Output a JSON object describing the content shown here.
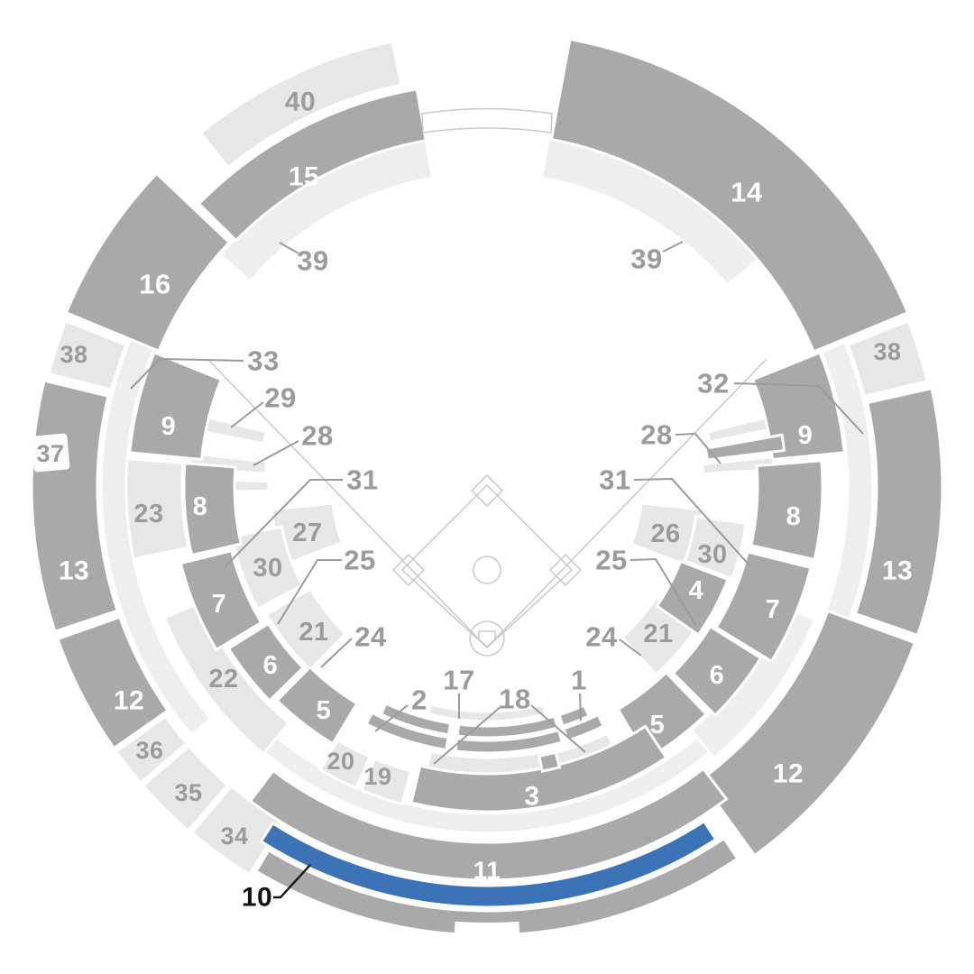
{
  "map": {
    "type": "stadium-seating-bowl",
    "highlighted_section": "10"
  },
  "colors": {
    "background": "#ffffff",
    "section_dark": "#a9a9a9",
    "section_light": "#e7e7e7",
    "walkway": "#eeeeee",
    "highlight_blue": "#3b73b6",
    "label_on_dark": "#ffffff",
    "label_gray": "#9b9b9b",
    "label_black": "#141414",
    "leader_line": "#9b9b9b",
    "field_line": "#c9c9c9",
    "tile_white": "#fbfbfb"
  },
  "labels": {
    "s3": "3",
    "s4": "4",
    "s5L": "5",
    "s5R": "5",
    "s6L": "6",
    "s6R": "6",
    "s7L": "7",
    "s7R": "7",
    "s8L": "8",
    "s8R": "8",
    "s9L": "9",
    "s9R": "9",
    "s11": "11",
    "s12L": "12",
    "s12R": "12",
    "s13L": "13",
    "s13R": "13",
    "s14": "14",
    "s15": "15",
    "s16": "16",
    "s19": "19",
    "s20": "20",
    "s21L": "21",
    "s21R": "21",
    "s22": "22",
    "s23": "23",
    "s26": "26",
    "s27": "27",
    "s30L": "30",
    "s30R": "30",
    "s34": "34",
    "s35": "35",
    "s36": "36",
    "s37": "37",
    "s38L": "38",
    "s38R": "38",
    "s40": "40"
  },
  "annotations": {
    "a1": "1",
    "a2": "2",
    "a10": "10",
    "a17": "17",
    "a18": "18",
    "a24L": "24",
    "a24R": "24",
    "a25L": "25",
    "a25R": "25",
    "a28L": "28",
    "a28R": "28",
    "a29": "29",
    "a31L": "31",
    "a31R": "31",
    "a32": "32",
    "a33": "33",
    "a39L": "39",
    "a39R": "39"
  }
}
